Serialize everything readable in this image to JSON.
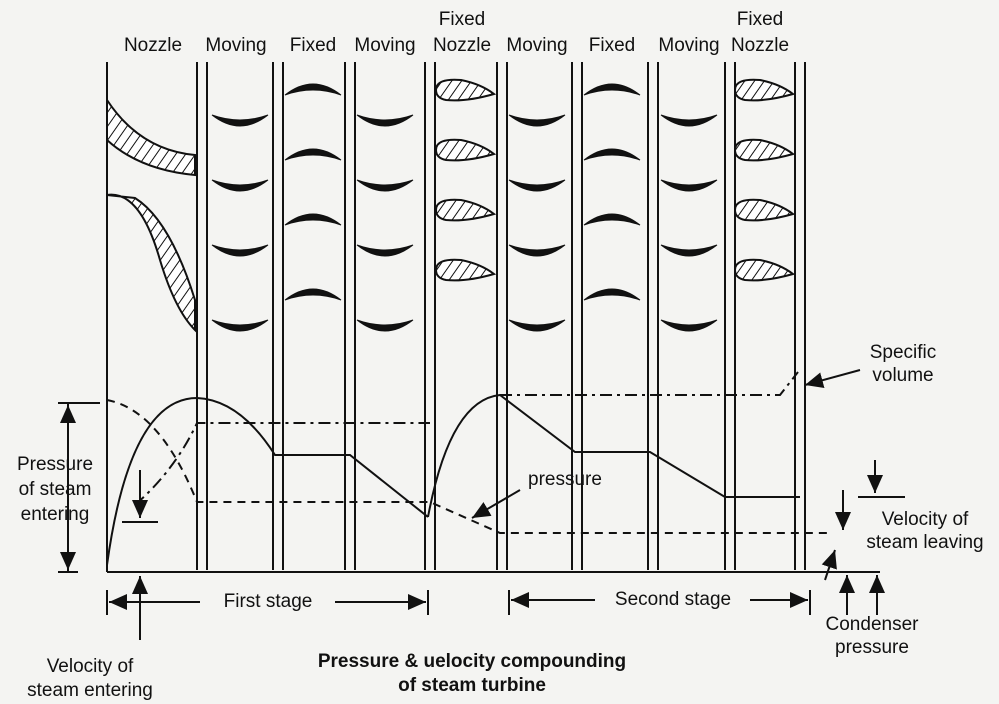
{
  "headers": [
    {
      "lines": [
        "Nozzle"
      ]
    },
    {
      "lines": [
        "Moving"
      ]
    },
    {
      "lines": [
        "Fixed"
      ]
    },
    {
      "lines": [
        "Moving"
      ]
    },
    {
      "lines": [
        "Fixed",
        "Nozzle"
      ]
    },
    {
      "lines": [
        "Moving"
      ]
    },
    {
      "lines": [
        "Fixed"
      ]
    },
    {
      "lines": [
        "Moving"
      ]
    },
    {
      "lines": [
        "Fixed",
        "Nozzle"
      ]
    }
  ],
  "annotations": {
    "specific_volume": [
      "Specific",
      "volume"
    ],
    "pressure_entering": [
      "Pressure",
      "of steam",
      "entering"
    ],
    "pressure": [
      "pressure"
    ],
    "velocity_leaving": [
      "Velocity of",
      "steam leaving"
    ],
    "first_stage": [
      "First stage"
    ],
    "second_stage": [
      "Second stage"
    ],
    "condenser_pressure": [
      "Condenser",
      "pressure"
    ],
    "velocity_entering": [
      "Velocity of",
      "steam entering"
    ]
  },
  "caption": [
    "Pressure & uelocity compounding",
    "of steam turbine"
  ]
}
